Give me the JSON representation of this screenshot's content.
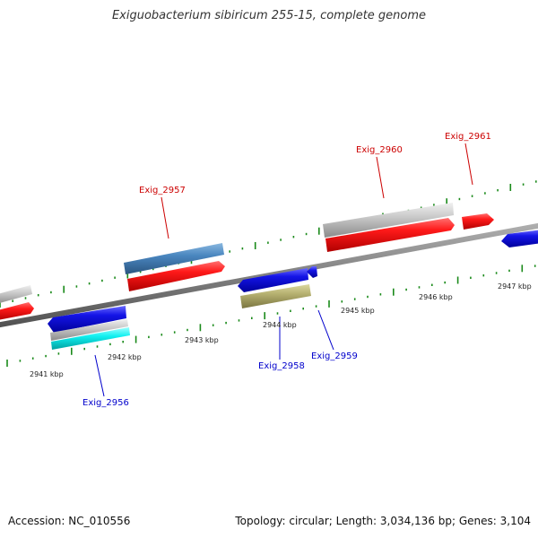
{
  "title": "Exiguobacterium sibiricum 255-15, complete genome",
  "footer": {
    "accession": "Accession: NC_010556",
    "summary": "Topology: circular; Length: 3,034,136 bp; Genes: 3,104"
  },
  "colors": {
    "backbone": "#808080",
    "tick": "#1a8a1a",
    "forward_label": "#cc0000",
    "reverse_label": "#0000cc",
    "red_gene": "#ff1010",
    "blue_gene": "#1010e0",
    "gray_gene": "#c8c8c8",
    "steel_gene": "#4a86bf",
    "olive_gene": "#b5b070",
    "cyan_gene": "#10f0f0"
  },
  "kbp_labels": [
    "2941 kbp",
    "2942 kbp",
    "2943 kbp",
    "2944 kbp",
    "2945 kbp",
    "2946 kbp",
    "2947 kbp"
  ],
  "gene_labels": [
    {
      "text": "Exig_2956",
      "strand": "reverse"
    },
    {
      "text": "Exig_2957",
      "strand": "forward"
    },
    {
      "text": "Exig_2958",
      "strand": "reverse"
    },
    {
      "text": "Exig_2959",
      "strand": "reverse"
    },
    {
      "text": "Exig_2960",
      "strand": "forward"
    },
    {
      "text": "Exig_2961",
      "strand": "forward"
    }
  ]
}
